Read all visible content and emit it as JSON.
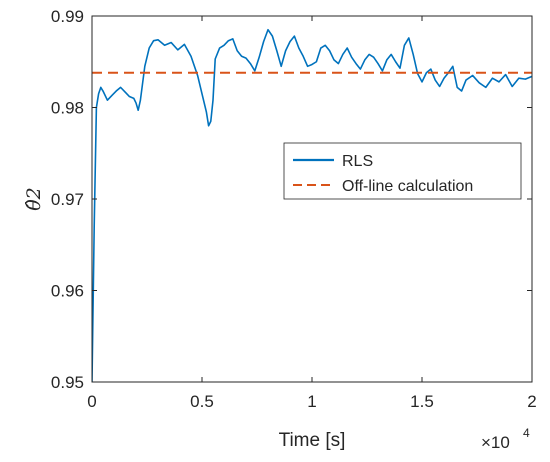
{
  "chart_data": {
    "type": "line",
    "title": "",
    "xlabel": "Time [s]",
    "ylabel": "θ̂2",
    "x_exponent_label": "×10",
    "x_exponent_power": "4",
    "xlim": [
      0,
      20000
    ],
    "ylim": [
      0.95,
      0.99
    ],
    "x_tick_values": [
      0,
      5000,
      10000,
      15000,
      20000
    ],
    "x_tick_labels": [
      "0",
      "0.5",
      "1",
      "1.5",
      "2"
    ],
    "y_tick_values": [
      0.95,
      0.96,
      0.97,
      0.98,
      0.99
    ],
    "y_tick_labels": [
      "0.95",
      "0.96",
      "0.97",
      "0.98",
      "0.99"
    ],
    "grid": false,
    "legend_position": "center-right",
    "series": [
      {
        "name": "RLS",
        "color": "#0072BD",
        "style": "solid",
        "x": [
          0,
          100,
          200,
          300,
          400,
          500,
          700,
          900,
          1100,
          1300,
          1500,
          1700,
          1900,
          2000,
          2100,
          2200,
          2400,
          2600,
          2800,
          3000,
          3300,
          3600,
          3900,
          4200,
          4500,
          4800,
          5000,
          5200,
          5300,
          5400,
          5500,
          5600,
          5800,
          6000,
          6200,
          6400,
          6600,
          6800,
          7000,
          7200,
          7400,
          7600,
          7800,
          8000,
          8200,
          8400,
          8600,
          8800,
          9000,
          9200,
          9400,
          9600,
          9800,
          10000,
          10200,
          10400,
          10600,
          10800,
          11000,
          11200,
          11400,
          11600,
          11800,
          12000,
          12200,
          12400,
          12600,
          12800,
          13000,
          13200,
          13400,
          13600,
          13800,
          14000,
          14200,
          14400,
          14600,
          14800,
          15000,
          15200,
          15400,
          15600,
          15800,
          16000,
          16200,
          16400,
          16600,
          16800,
          17000,
          17300,
          17600,
          17900,
          18200,
          18500,
          18800,
          19100,
          19400,
          19700,
          20000
        ],
        "y": [
          0.95,
          0.967,
          0.98,
          0.9815,
          0.9822,
          0.9818,
          0.9808,
          0.9813,
          0.9818,
          0.9822,
          0.9817,
          0.9812,
          0.981,
          0.9805,
          0.9797,
          0.9808,
          0.9845,
          0.9865,
          0.9873,
          0.9874,
          0.9868,
          0.9871,
          0.9863,
          0.9869,
          0.9856,
          0.9835,
          0.9815,
          0.9795,
          0.978,
          0.9785,
          0.9808,
          0.9853,
          0.9865,
          0.9868,
          0.9873,
          0.9875,
          0.9862,
          0.9856,
          0.9854,
          0.9848,
          0.984,
          0.9855,
          0.9872,
          0.9885,
          0.9878,
          0.9862,
          0.9845,
          0.9862,
          0.9872,
          0.9878,
          0.9865,
          0.9856,
          0.9845,
          0.9847,
          0.985,
          0.9865,
          0.9868,
          0.9862,
          0.9852,
          0.9848,
          0.9858,
          0.9865,
          0.9855,
          0.9848,
          0.9842,
          0.9852,
          0.9858,
          0.9855,
          0.9848,
          0.984,
          0.9852,
          0.9858,
          0.985,
          0.9843,
          0.9868,
          0.9876,
          0.9858,
          0.9837,
          0.9828,
          0.9838,
          0.9842,
          0.983,
          0.9823,
          0.9832,
          0.9838,
          0.9845,
          0.9822,
          0.9818,
          0.983,
          0.9835,
          0.9827,
          0.9822,
          0.9832,
          0.9828,
          0.9836,
          0.9823,
          0.9832,
          0.9831,
          0.9834
        ]
      },
      {
        "name": "Off-line calculation",
        "color": "#D95319",
        "style": "dashed",
        "x": [
          0,
          20000
        ],
        "y": [
          0.9838,
          0.9838
        ]
      }
    ]
  }
}
